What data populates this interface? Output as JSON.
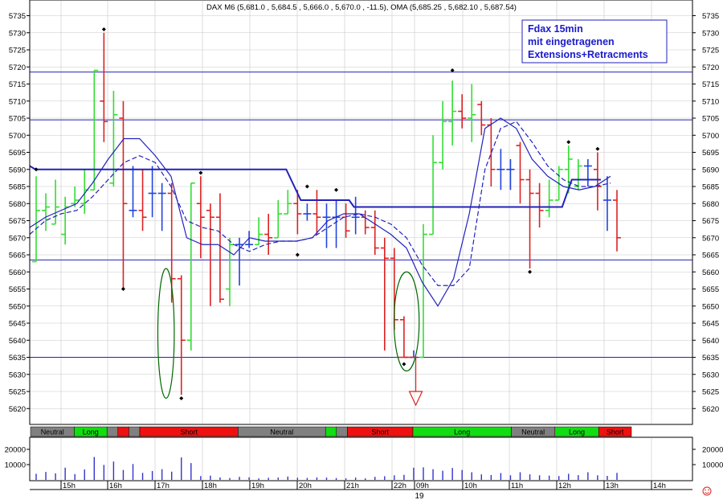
{
  "header": {
    "quote_line": "DAX M6 (5,681.0 , 5,684.5 , 5,666.0 , 5,670.0 , -11.5), OMA (5,685.25 , 5,682.10 , 5,687.54)"
  },
  "annotation_box": {
    "lines": [
      "Fdax 15min",
      "mit eingetragenen",
      "Extensions+Retracments"
    ]
  },
  "footer": {
    "date_label": "19",
    "status_icon": "smiley-icon"
  },
  "colors": {
    "up": "#33dd33",
    "down": "#dd2222",
    "neutral_bar": "#2244dd",
    "overlay": "#2222bb",
    "grid": "#c8c8c8",
    "ellipse": "#006600",
    "signal_neutral": "#808080",
    "signal_long": "#11dd11",
    "signal_short": "#ee1111",
    "volume": "#3333cc"
  },
  "chart_data": [
    {
      "type": "ohlc",
      "title": "DAX M6",
      "ylim": [
        5615,
        5738
      ],
      "yticks": [
        5735,
        5730,
        5725,
        5720,
        5715,
        5710,
        5705,
        5700,
        5695,
        5690,
        5685,
        5680,
        5675,
        5670,
        5665,
        5660,
        5655,
        5650,
        5645,
        5640,
        5635,
        5630,
        5625,
        5620
      ],
      "xticks": [
        "15h",
        "16h",
        "17h",
        "18h",
        "19h",
        "20h",
        "21h",
        "22h",
        "09h",
        "10h",
        "11h",
        "12h",
        "13h",
        "14h"
      ],
      "grid": true,
      "bars": [
        {
          "o": 5663,
          "h": 5688,
          "l": 5663,
          "c": 5678
        },
        {
          "o": 5678,
          "h": 5683,
          "l": 5672,
          "c": 5679
        },
        {
          "o": 5674,
          "h": 5687,
          "l": 5674,
          "c": 5679
        },
        {
          "o": 5671,
          "h": 5682,
          "l": 5668,
          "c": 5679
        },
        {
          "o": 5680,
          "h": 5685,
          "l": 5679,
          "c": 5681
        },
        {
          "o": 5680,
          "h": 5690,
          "l": 5677,
          "c": 5684
        },
        {
          "o": 5684,
          "h": 5719,
          "l": 5684,
          "c": 5719
        },
        {
          "o": 5710,
          "h": 5730,
          "l": 5698,
          "c": 5704
        },
        {
          "o": 5686,
          "h": 5713,
          "l": 5685,
          "c": 5706
        },
        {
          "o": 5705,
          "h": 5710,
          "l": 5655,
          "c": 5680
        },
        {
          "o": 5678,
          "h": 5691,
          "l": 5676,
          "c": 5678
        },
        {
          "o": 5678,
          "h": 5690,
          "l": 5672,
          "c": 5676
        },
        {
          "o": 5683,
          "h": 5691,
          "l": 5676,
          "c": 5683
        },
        {
          "o": 5683,
          "h": 5686,
          "l": 5672,
          "c": 5683
        },
        {
          "o": 5683,
          "h": 5686,
          "l": 5651,
          "c": 5658
        },
        {
          "o": 5658,
          "h": 5659,
          "l": 5624,
          "c": 5640
        },
        {
          "o": 5640,
          "h": 5686,
          "l": 5637,
          "c": 5686
        },
        {
          "o": 5680,
          "h": 5688,
          "l": 5664,
          "c": 5676
        },
        {
          "o": 5678,
          "h": 5680,
          "l": 5650,
          "c": 5676
        },
        {
          "o": 5676,
          "h": 5683,
          "l": 5651,
          "c": 5652
        },
        {
          "o": 5655,
          "h": 5670,
          "l": 5650,
          "c": 5668
        },
        {
          "o": 5668,
          "h": 5670,
          "l": 5656,
          "c": 5668
        },
        {
          "o": 5668,
          "h": 5672,
          "l": 5667,
          "c": 5668
        },
        {
          "o": 5668,
          "h": 5676,
          "l": 5668,
          "c": 5671
        },
        {
          "o": 5671,
          "h": 5677,
          "l": 5665,
          "c": 5670
        },
        {
          "o": 5670,
          "h": 5681,
          "l": 5670,
          "c": 5677
        },
        {
          "o": 5677,
          "h": 5684,
          "l": 5677,
          "c": 5680
        },
        {
          "o": 5680,
          "h": 5684,
          "l": 5671,
          "c": 5677
        },
        {
          "o": 5677,
          "h": 5680,
          "l": 5675,
          "c": 5677
        },
        {
          "o": 5677,
          "h": 5684,
          "l": 5671,
          "c": 5676
        },
        {
          "o": 5676,
          "h": 5680,
          "l": 5667,
          "c": 5676
        },
        {
          "o": 5676,
          "h": 5681,
          "l": 5667,
          "c": 5676
        },
        {
          "o": 5676,
          "h": 5680,
          "l": 5670,
          "c": 5672
        },
        {
          "o": 5676,
          "h": 5682,
          "l": 5671,
          "c": 5676
        },
        {
          "o": 5676,
          "h": 5678,
          "l": 5671,
          "c": 5673
        },
        {
          "o": 5673,
          "h": 5678,
          "l": 5665,
          "c": 5667
        },
        {
          "o": 5667,
          "h": 5670,
          "l": 5637,
          "c": 5664
        },
        {
          "o": 5664,
          "h": 5667,
          "l": 5643,
          "c": 5646
        },
        {
          "o": 5646,
          "h": 5647,
          "l": 5635,
          "c": 5635
        },
        {
          "o": 5635,
          "h": 5637,
          "l": 5635,
          "c": 5635
        },
        {
          "o": 5635,
          "h": 5674,
          "l": 5635,
          "c": 5671
        },
        {
          "o": 5671,
          "h": 5700,
          "l": 5671,
          "c": 5692
        },
        {
          "o": 5692,
          "h": 5710,
          "l": 5690,
          "c": 5704
        },
        {
          "o": 5704,
          "h": 5716,
          "l": 5697,
          "c": 5707
        },
        {
          "o": 5707,
          "h": 5712,
          "l": 5702,
          "c": 5705
        },
        {
          "o": 5705,
          "h": 5715,
          "l": 5698,
          "c": 5706
        },
        {
          "o": 5709,
          "h": 5710,
          "l": 5700,
          "c": 5703
        },
        {
          "o": 5703,
          "h": 5705,
          "l": 5685,
          "c": 5690
        },
        {
          "o": 5690,
          "h": 5696,
          "l": 5684,
          "c": 5690
        },
        {
          "o": 5690,
          "h": 5693,
          "l": 5684,
          "c": 5690
        },
        {
          "o": 5697,
          "h": 5698,
          "l": 5680,
          "c": 5687
        },
        {
          "o": 5687,
          "h": 5690,
          "l": 5661,
          "c": 5683
        },
        {
          "o": 5683,
          "h": 5686,
          "l": 5673,
          "c": 5678
        },
        {
          "o": 5678,
          "h": 5687,
          "l": 5676,
          "c": 5681
        },
        {
          "o": 5681,
          "h": 5691,
          "l": 5681,
          "c": 5690
        },
        {
          "o": 5690,
          "h": 5697,
          "l": 5683,
          "c": 5693
        },
        {
          "o": 5685,
          "h": 5693,
          "l": 5684,
          "c": 5691
        },
        {
          "o": 5691,
          "h": 5693,
          "l": 5685,
          "c": 5691
        },
        {
          "o": 5690,
          "h": 5695,
          "l": 5678,
          "c": 5685
        },
        {
          "o": 5681,
          "h": 5688,
          "l": 5672,
          "c": 5681
        },
        {
          "o": 5681,
          "h": 5684,
          "l": 5666,
          "c": 5670
        }
      ],
      "horizontal_levels": [
        5718.5,
        5704.5,
        5663.5,
        5635
      ],
      "step_line": [
        [
          0,
          5691
        ],
        [
          0.6,
          5690
        ],
        [
          26.5,
          5690
        ],
        [
          28,
          5681
        ],
        [
          33,
          5681
        ],
        [
          33.5,
          5679
        ],
        [
          55,
          5679
        ],
        [
          56,
          5687
        ],
        [
          59,
          5687
        ]
      ],
      "oma_fast": [
        5673,
        5676,
        5678,
        5680,
        5686,
        5693,
        5699,
        5699,
        5694,
        5688,
        5670,
        5668,
        5668,
        5665,
        5670,
        5669,
        5669,
        5669,
        5670,
        5675,
        5677,
        5677,
        5674,
        5671,
        5667,
        5657,
        5650,
        5658,
        5677,
        5702,
        5705,
        5702,
        5693,
        5688,
        5685,
        5684,
        5685,
        5688
      ],
      "oma_slow": [
        5671,
        5675,
        5677,
        5678,
        5682,
        5687,
        5692,
        5694,
        5692,
        5685,
        5675,
        5673,
        5672,
        5668,
        5666,
        5668,
        5669,
        5669,
        5670,
        5673,
        5676,
        5677,
        5676,
        5674,
        5670,
        5662,
        5656,
        5656,
        5661,
        5690,
        5702,
        5704,
        5698,
        5691,
        5687,
        5685,
        5685,
        5686
      ],
      "swing_points": [
        [
          0,
          5690
        ],
        [
          7,
          5731
        ],
        [
          9,
          5655
        ],
        [
          15,
          5623
        ],
        [
          17,
          5689
        ],
        [
          28,
          5685
        ],
        [
          27,
          5665
        ],
        [
          31,
          5684
        ],
        [
          38,
          5633
        ],
        [
          43,
          5719
        ],
        [
          51,
          5660
        ],
        [
          55,
          5698
        ],
        [
          58,
          5696
        ]
      ],
      "ellipses": [
        [
          13.4,
          14.1,
          5661,
          5623
        ],
        [
          37.8,
          39.4,
          5660,
          5631
        ]
      ],
      "target_level": 5635,
      "target_arrow": 5621
    },
    {
      "type": "band",
      "segments": [
        {
          "label": "Neutral",
          "signal": "neutral",
          "start": 0,
          "end": 4
        },
        {
          "label": "Long",
          "signal": "long",
          "start": 4,
          "end": 7
        },
        {
          "label": "",
          "signal": "neutral",
          "start": 7,
          "end": 8
        },
        {
          "label": "",
          "signal": "short",
          "start": 8,
          "end": 9
        },
        {
          "label": "",
          "signal": "neutral",
          "start": 9,
          "end": 10
        },
        {
          "label": "Short",
          "signal": "short",
          "start": 10,
          "end": 19
        },
        {
          "label": "Neutral",
          "signal": "neutral",
          "start": 19,
          "end": 27
        },
        {
          "label": "",
          "signal": "long",
          "start": 27,
          "end": 28
        },
        {
          "label": "",
          "signal": "neutral",
          "start": 28,
          "end": 29
        },
        {
          "label": "Short",
          "signal": "short",
          "start": 29,
          "end": 35
        },
        {
          "label": "Long",
          "signal": "long",
          "start": 35,
          "end": 44
        },
        {
          "label": "Neutral",
          "signal": "neutral",
          "start": 44,
          "end": 48
        },
        {
          "label": "Long",
          "signal": "long",
          "start": 48,
          "end": 52
        },
        {
          "label": "Short",
          "signal": "short",
          "start": 52,
          "end": 55
        }
      ]
    },
    {
      "type": "bar",
      "ylabel": "",
      "yticks": [
        20000,
        10000
      ],
      "ylim": [
        0,
        25000
      ],
      "values": [
        4000,
        5200,
        4300,
        8000,
        3800,
        6800,
        15000,
        9800,
        12000,
        6500,
        10400,
        4600,
        5800,
        7000,
        5400,
        14700,
        11000,
        2500,
        2800,
        1600,
        1200,
        2000,
        1700,
        1000,
        1400,
        1500,
        2200,
        1400,
        1300,
        1600,
        1500,
        1200,
        1000,
        1500,
        1000,
        2000,
        2400,
        3000,
        3300,
        8000,
        8200,
        7000,
        6000,
        7800,
        6500,
        5000,
        3600,
        3200,
        4500,
        3000,
        5000,
        3600,
        3000,
        2800,
        2500,
        4000,
        3100,
        5000,
        3000,
        2600,
        4600
      ]
    }
  ]
}
